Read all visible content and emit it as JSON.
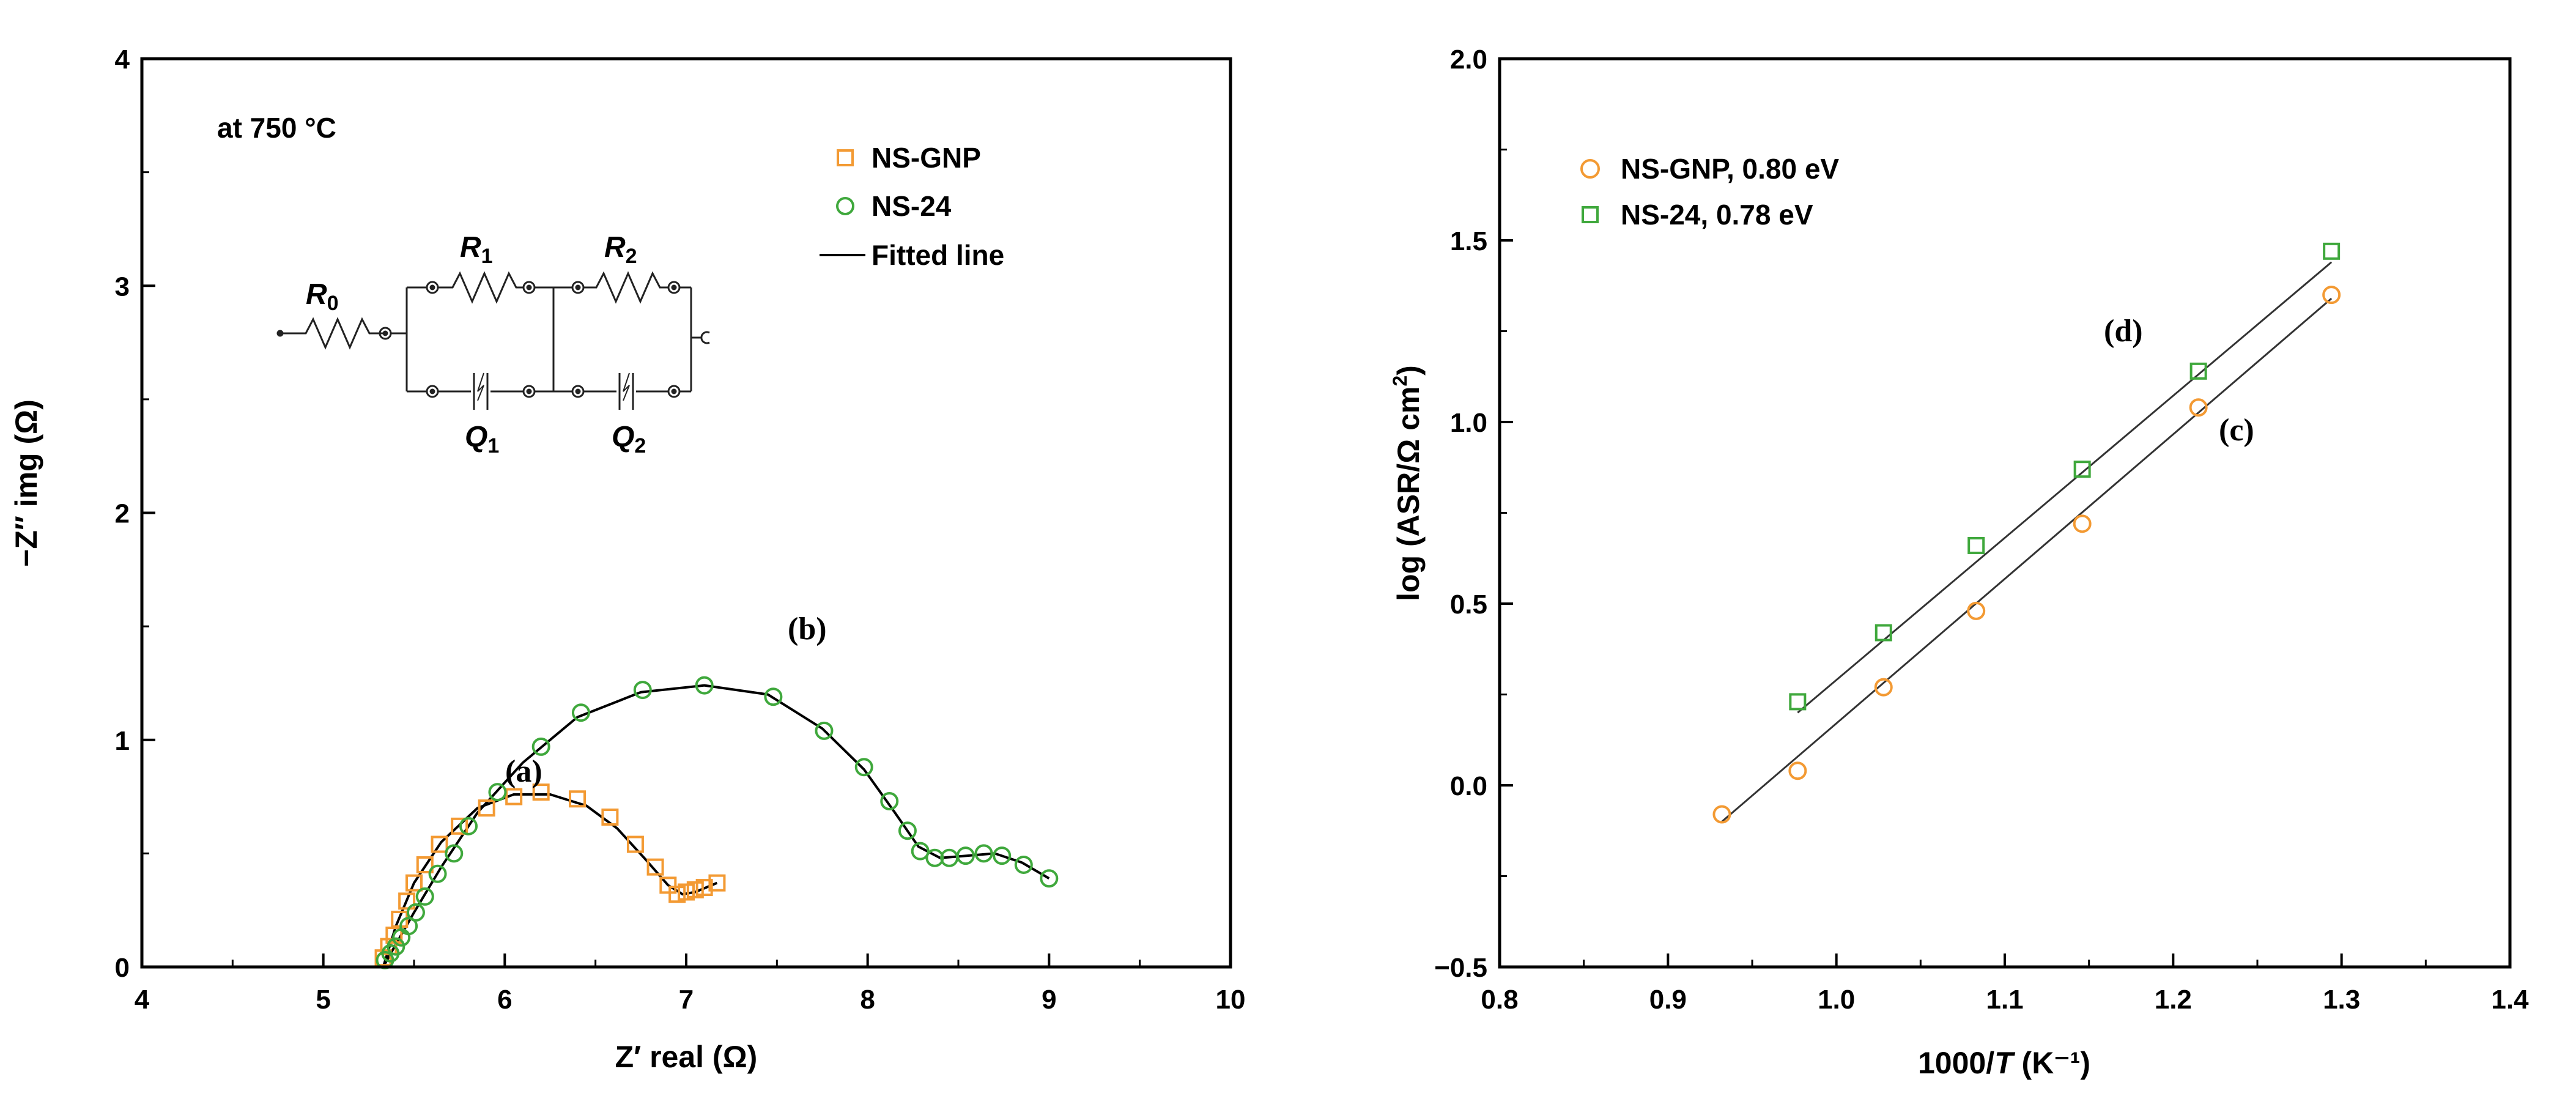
{
  "chart_data": [
    {
      "type": "scatter",
      "title": "",
      "xlabel": "Z′ real (Ω)",
      "ylabel": "−Z″ img (Ω)",
      "xlim": [
        4,
        10
      ],
      "ylim": [
        0,
        4
      ],
      "xticks": [
        "4",
        "5",
        "6",
        "7",
        "8",
        "9",
        "10"
      ],
      "yticks": [
        "0",
        "1",
        "2",
        "3",
        "4"
      ],
      "annotation_temp": "at 750 °C",
      "circuit": {
        "r0": "R",
        "r0_sub": "0",
        "r1": "R",
        "r1_sub": "1",
        "r2": "R",
        "r2_sub": "2",
        "q1": "Q",
        "q1_sub": "1",
        "q2": "Q",
        "q2_sub": "2"
      },
      "legend": [
        "NS-GNP",
        "NS-24",
        "Fitted line"
      ],
      "curve_labels": [
        "(a)",
        "(b)"
      ],
      "series": [
        {
          "name": "NS-GNP",
          "marker": "square",
          "color": "#f39a33",
          "x": [
            5.33,
            5.36,
            5.39,
            5.42,
            5.46,
            5.5,
            5.56,
            5.64,
            5.75,
            5.9,
            6.05,
            6.2,
            6.4,
            6.58,
            6.72,
            6.83,
            6.9,
            6.95,
            7.0,
            7.05,
            7.1,
            7.17
          ],
          "y": [
            0.04,
            0.09,
            0.14,
            0.21,
            0.29,
            0.37,
            0.45,
            0.54,
            0.62,
            0.7,
            0.75,
            0.77,
            0.74,
            0.66,
            0.54,
            0.44,
            0.36,
            0.32,
            0.33,
            0.34,
            0.35,
            0.37
          ]
        },
        {
          "name": "NS-24",
          "marker": "circle",
          "color": "#3fa83c",
          "x": [
            5.34,
            5.37,
            5.4,
            5.43,
            5.47,
            5.51,
            5.56,
            5.63,
            5.72,
            5.8,
            5.96,
            6.2,
            6.42,
            6.76,
            7.1,
            7.48,
            7.76,
            7.98,
            8.12,
            8.22,
            8.29,
            8.37,
            8.45,
            8.54,
            8.64,
            8.74,
            8.86,
            9.0
          ],
          "y": [
            0.03,
            0.06,
            0.09,
            0.13,
            0.18,
            0.24,
            0.31,
            0.41,
            0.5,
            0.62,
            0.77,
            0.97,
            1.12,
            1.22,
            1.24,
            1.19,
            1.04,
            0.88,
            0.73,
            0.6,
            0.51,
            0.48,
            0.48,
            0.49,
            0.5,
            0.49,
            0.45,
            0.39
          ]
        },
        {
          "name": "Fitted (a)",
          "style": "line",
          "color": "#000000",
          "x": [
            5.33,
            5.4,
            5.5,
            5.65,
            5.85,
            6.05,
            6.25,
            6.45,
            6.62,
            6.78,
            6.9,
            6.98,
            7.05,
            7.17
          ],
          "y": [
            0.0,
            0.18,
            0.37,
            0.55,
            0.7,
            0.76,
            0.76,
            0.71,
            0.61,
            0.47,
            0.36,
            0.32,
            0.33,
            0.37
          ]
        },
        {
          "name": "Fitted (b)",
          "style": "line",
          "color": "#000000",
          "x": [
            5.33,
            5.4,
            5.5,
            5.65,
            5.85,
            6.1,
            6.4,
            6.75,
            7.1,
            7.45,
            7.75,
            7.98,
            8.15,
            8.28,
            8.4,
            8.55,
            8.7,
            8.85,
            9.0
          ],
          "y": [
            0.0,
            0.1,
            0.24,
            0.44,
            0.68,
            0.9,
            1.1,
            1.21,
            1.24,
            1.2,
            1.05,
            0.87,
            0.68,
            0.53,
            0.48,
            0.49,
            0.5,
            0.46,
            0.39
          ]
        }
      ]
    },
    {
      "type": "scatter",
      "title": "",
      "xlabel_pre": "1000/",
      "xlabel_T": "T",
      "xlabel_post": " (K⁻¹)",
      "ylabel_main": "log (ASR/Ω cm",
      "ylabel_sup": "2",
      "ylabel_end": ")",
      "xlim": [
        0.8,
        1.4
      ],
      "ylim": [
        -0.5,
        2.0
      ],
      "xticks": [
        "0.8",
        "0.9",
        "1.0",
        "1.1",
        "1.2",
        "1.3",
        "1.4"
      ],
      "yticks": [
        "−0.5",
        "0.0",
        "0.5",
        "1.0",
        "1.5",
        "2.0"
      ],
      "legend": [
        "NS-GNP, 0.80 eV",
        "NS-24, 0.78 eV"
      ],
      "curve_labels": [
        "(c)",
        "(d)"
      ],
      "series": [
        {
          "name": "NS-GNP, 0.80 eV",
          "marker": "circle",
          "color": "#f39a33",
          "x": [
            0.932,
            0.977,
            1.028,
            1.083,
            1.146,
            1.215,
            1.294
          ],
          "y": [
            -0.08,
            0.04,
            0.27,
            0.48,
            0.72,
            1.04,
            1.35
          ],
          "fit": [
            [
              0.932,
              -0.1
            ],
            [
              1.294,
              1.34
            ]
          ]
        },
        {
          "name": "NS-24, 0.78 eV",
          "marker": "square",
          "color": "#3fa83c",
          "x": [
            0.977,
            1.028,
            1.083,
            1.146,
            1.215,
            1.294
          ],
          "y": [
            0.23,
            0.42,
            0.66,
            0.87,
            1.14,
            1.47
          ],
          "fit": [
            [
              0.977,
              0.2
            ],
            [
              1.294,
              1.44
            ]
          ]
        }
      ]
    }
  ]
}
